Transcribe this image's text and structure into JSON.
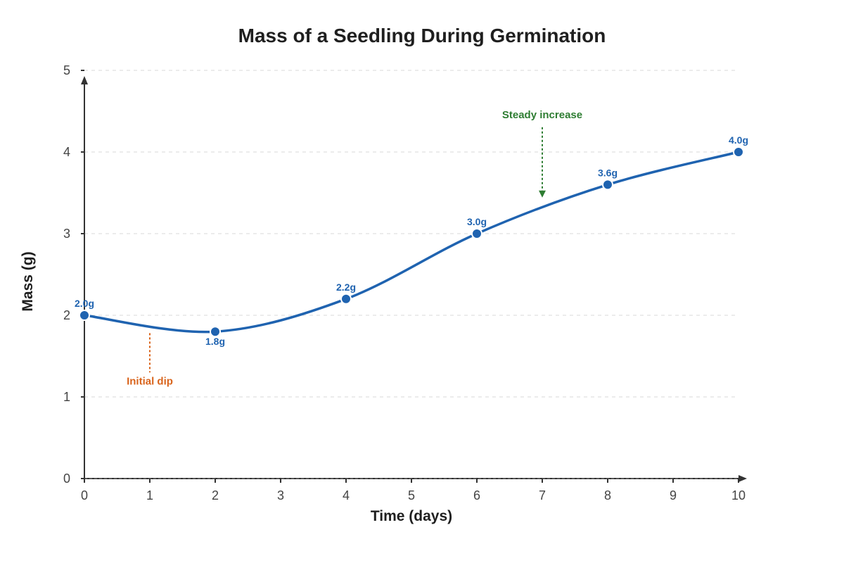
{
  "chart_data": {
    "type": "line",
    "title": "Mass of a Seedling During Germination",
    "xlabel": "Time (days)",
    "ylabel": "Mass (g)",
    "xlim": [
      0,
      10
    ],
    "ylim": [
      0,
      5
    ],
    "x_ticks": [
      "0",
      "1",
      "2",
      "3",
      "4",
      "5",
      "6",
      "7",
      "8",
      "9",
      "10"
    ],
    "y_ticks": [
      "0",
      "1",
      "2",
      "3",
      "4",
      "5"
    ],
    "grid": "horizontal dashed",
    "series": [
      {
        "x": [
          0,
          2,
          4,
          6,
          8,
          10
        ],
        "y": [
          2.0,
          1.8,
          2.2,
          3.0,
          3.6,
          4.0
        ],
        "point_labels": [
          "2.0g",
          "1.8g",
          "2.2g",
          "3.0g",
          "3.6g",
          "4.0g"
        ],
        "color": "#1f63b0"
      }
    ],
    "annotations": [
      {
        "text": "Initial dip",
        "x": 1,
        "y": 1.85,
        "color": "#d9641c"
      },
      {
        "text": "Steady increase",
        "x": 7,
        "y": 3.45,
        "color": "#2e7d32"
      }
    ]
  }
}
